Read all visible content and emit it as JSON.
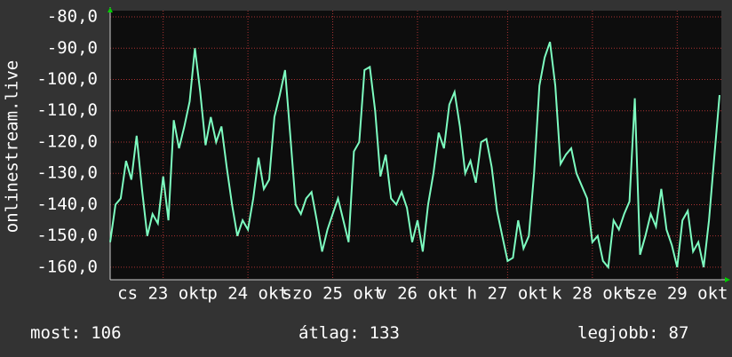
{
  "chart_data": {
    "type": "line",
    "y_label": "onlinestream.live",
    "xlim": [
      0,
      115
    ],
    "xticks": [
      {
        "value": 10,
        "label": "cs 23 okt"
      },
      {
        "value": 26,
        "label": "p 24 okt"
      },
      {
        "value": 42,
        "label": "szo 25 okt"
      },
      {
        "value": 58,
        "label": "v 26 okt"
      },
      {
        "value": 75,
        "label": "h 27 okt"
      },
      {
        "value": 91,
        "label": "k 28 okt"
      },
      {
        "value": 107,
        "label": "sze 29 okt"
      }
    ],
    "ylim": [
      -164,
      -78
    ],
    "yticks": [
      {
        "value": -80,
        "label": "-80,0"
      },
      {
        "value": -90,
        "label": "-90,0"
      },
      {
        "value": -100,
        "label": "-100,0"
      },
      {
        "value": -110,
        "label": "-110,0"
      },
      {
        "value": -120,
        "label": "-120,0"
      },
      {
        "value": -130,
        "label": "-130,0"
      },
      {
        "value": -140,
        "label": "-140,0"
      },
      {
        "value": -150,
        "label": "-150,0"
      },
      {
        "value": -160,
        "label": "-160,0"
      }
    ],
    "grid": true,
    "series": [
      {
        "color": "#7dfcc0",
        "values": [
          -152,
          -140,
          -138,
          -126,
          -132,
          -118,
          -135,
          -150,
          -143,
          -146,
          -131,
          -145,
          -113,
          -122,
          -115,
          -107,
          -90,
          -104,
          -121,
          -112,
          -120,
          -115,
          -128,
          -140,
          -150,
          -145,
          -148,
          -138,
          -125,
          -135,
          -132,
          -112,
          -105,
          -97,
          -118,
          -140,
          -143,
          -138,
          -136,
          -145,
          -155,
          -148,
          -143,
          -138,
          -145,
          -152,
          -123,
          -120,
          -97,
          -96,
          -110,
          -131,
          -124,
          -138,
          -140,
          -136,
          -141,
          -152,
          -145,
          -155,
          -140,
          -130,
          -117,
          -122,
          -108,
          -104,
          -115,
          -130,
          -126,
          -133,
          -120,
          -119,
          -128,
          -142,
          -150,
          -158,
          -157,
          -145,
          -154,
          -150,
          -130,
          -102,
          -93,
          -88,
          -102,
          -127,
          -124,
          -122,
          -130,
          -134,
          -138,
          -152,
          -150,
          -158,
          -160,
          -145,
          -148,
          -143,
          -139,
          -106,
          -156,
          -150,
          -143,
          -147,
          -135,
          -148,
          -153,
          -160,
          -145,
          -142,
          -155,
          -152,
          -160,
          -145,
          -125,
          -105
        ]
      }
    ],
    "stats": [
      {
        "label": "most:",
        "value": 106
      },
      {
        "label": "átlag:",
        "value": 133
      },
      {
        "label": "legjobb:",
        "value": 87
      }
    ]
  }
}
